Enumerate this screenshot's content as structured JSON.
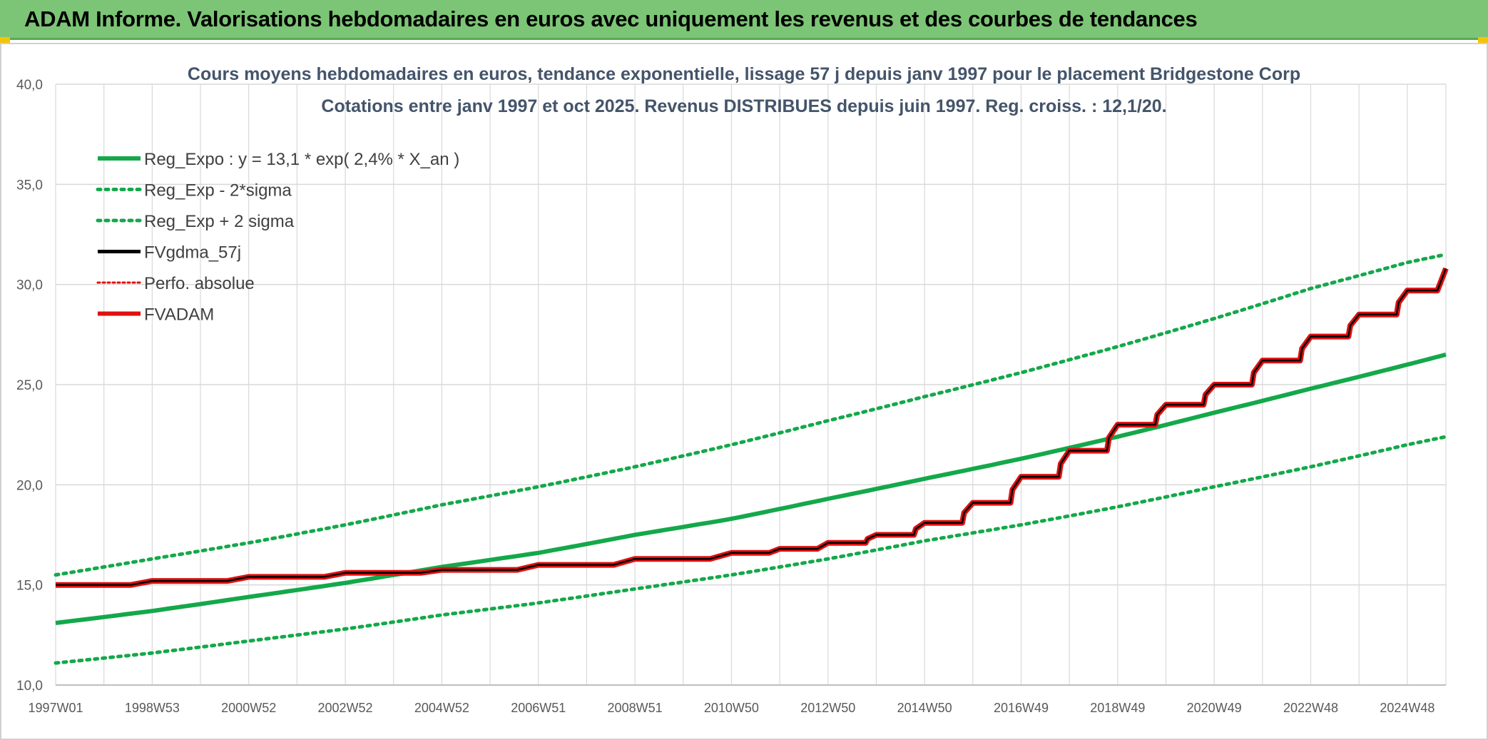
{
  "header": {
    "title": "ADAM Informe. Valorisations hebdomadaires en euros avec uniquement les revenus et des courbes de tendances"
  },
  "colors": {
    "banner": "#7cc576",
    "green": "#14a84a",
    "red": "#e01010",
    "black": "#000000",
    "grid": "#d9d9d9"
  },
  "chart_data": {
    "type": "line",
    "title": "Cours moyens hebdomadaires en euros, tendance exponentielle, lissage 57 j depuis janv 1997 pour le placement Bridgestone Corp",
    "subtitle": "Cotations entre janv 1997 et oct 2025. Revenus DISTRIBUES depuis juin 1997. Reg. croiss. : 12,1/20.",
    "xlabel": "",
    "ylabel": "",
    "ylim": [
      10,
      40
    ],
    "xlim": [
      1997.0,
      2025.8
    ],
    "grid": true,
    "legend_position": "top-left",
    "y_ticks": [
      "10,0",
      "15,0",
      "20,0",
      "25,0",
      "30,0",
      "35,0",
      "40,0"
    ],
    "x_ticks": [
      "1997W01",
      "1998W53",
      "2000W52",
      "2002W52",
      "2004W52",
      "2006W51",
      "2008W51",
      "2010W50",
      "2012W50",
      "2014W50",
      "2016W49",
      "2018W49",
      "2020W49",
      "2022W48",
      "2024W48"
    ],
    "x_tick_years": [
      1997.0,
      1999.0,
      2001.0,
      2003.0,
      2005.0,
      2007.0,
      2009.0,
      2011.0,
      2013.0,
      2015.0,
      2017.0,
      2019.0,
      2021.0,
      2023.0,
      2025.0
    ],
    "series": [
      {
        "name": "Reg_Expo : y = 13,1 * exp( 2,4% *  X_an )",
        "style": "solid-green-thick",
        "x": [
          1997,
          1999,
          2001,
          2003,
          2005,
          2007,
          2009,
          2011,
          2013,
          2015,
          2017,
          2019,
          2021,
          2023,
          2025,
          2025.8
        ],
        "values": [
          13.1,
          13.7,
          14.4,
          15.1,
          15.9,
          16.6,
          17.5,
          18.3,
          19.3,
          20.3,
          21.3,
          22.4,
          23.6,
          24.8,
          26.0,
          26.5
        ]
      },
      {
        "name": "Reg_Exp - 2*sigma",
        "style": "dotted-green",
        "x": [
          1997,
          1999,
          2001,
          2003,
          2005,
          2007,
          2009,
          2011,
          2013,
          2015,
          2017,
          2019,
          2021,
          2023,
          2025,
          2025.8
        ],
        "values": [
          11.1,
          11.6,
          12.2,
          12.8,
          13.5,
          14.1,
          14.8,
          15.5,
          16.3,
          17.2,
          18.0,
          18.9,
          19.9,
          20.9,
          22.0,
          22.4
        ]
      },
      {
        "name": "Reg_Exp + 2 sigma",
        "style": "dotted-green",
        "x": [
          1997,
          1999,
          2001,
          2003,
          2005,
          2007,
          2009,
          2011,
          2013,
          2015,
          2017,
          2019,
          2021,
          2023,
          2025,
          2025.8
        ],
        "values": [
          15.5,
          16.3,
          17.1,
          18.0,
          19.0,
          19.9,
          20.9,
          22.0,
          23.2,
          24.4,
          25.6,
          26.9,
          28.3,
          29.8,
          31.1,
          31.5
        ]
      },
      {
        "name": "FVgdma_57j",
        "style": "solid-black",
        "x": [
          1997,
          1999,
          2001,
          2003,
          2005,
          2007,
          2009,
          2011,
          2012,
          2013,
          2014,
          2015,
          2016,
          2017,
          2018,
          2019,
          2020,
          2021,
          2022,
          2023,
          2024,
          2025,
          2025.8
        ],
        "values": [
          15.0,
          15.2,
          15.4,
          15.6,
          15.75,
          16.0,
          16.3,
          16.6,
          16.8,
          17.1,
          17.5,
          18.1,
          19.1,
          20.4,
          21.7,
          23.0,
          24.0,
          25.0,
          26.2,
          27.4,
          28.5,
          29.7,
          30.8
        ]
      },
      {
        "name": "Perfo. absolue",
        "style": "dotted-red",
        "x": [],
        "values": []
      },
      {
        "name": "FVADAM",
        "style": "solid-red-thick",
        "x": [
          1997,
          1999,
          2001,
          2003,
          2005,
          2007,
          2009,
          2011,
          2012,
          2013,
          2014,
          2015,
          2016,
          2017,
          2018,
          2019,
          2020,
          2021,
          2022,
          2023,
          2024,
          2025,
          2025.8
        ],
        "values": [
          15.0,
          15.2,
          15.4,
          15.6,
          15.75,
          16.0,
          16.3,
          16.6,
          16.8,
          17.1,
          17.5,
          18.1,
          19.1,
          20.4,
          21.7,
          23.0,
          24.0,
          25.0,
          26.2,
          27.4,
          28.5,
          29.7,
          30.8
        ]
      }
    ]
  }
}
